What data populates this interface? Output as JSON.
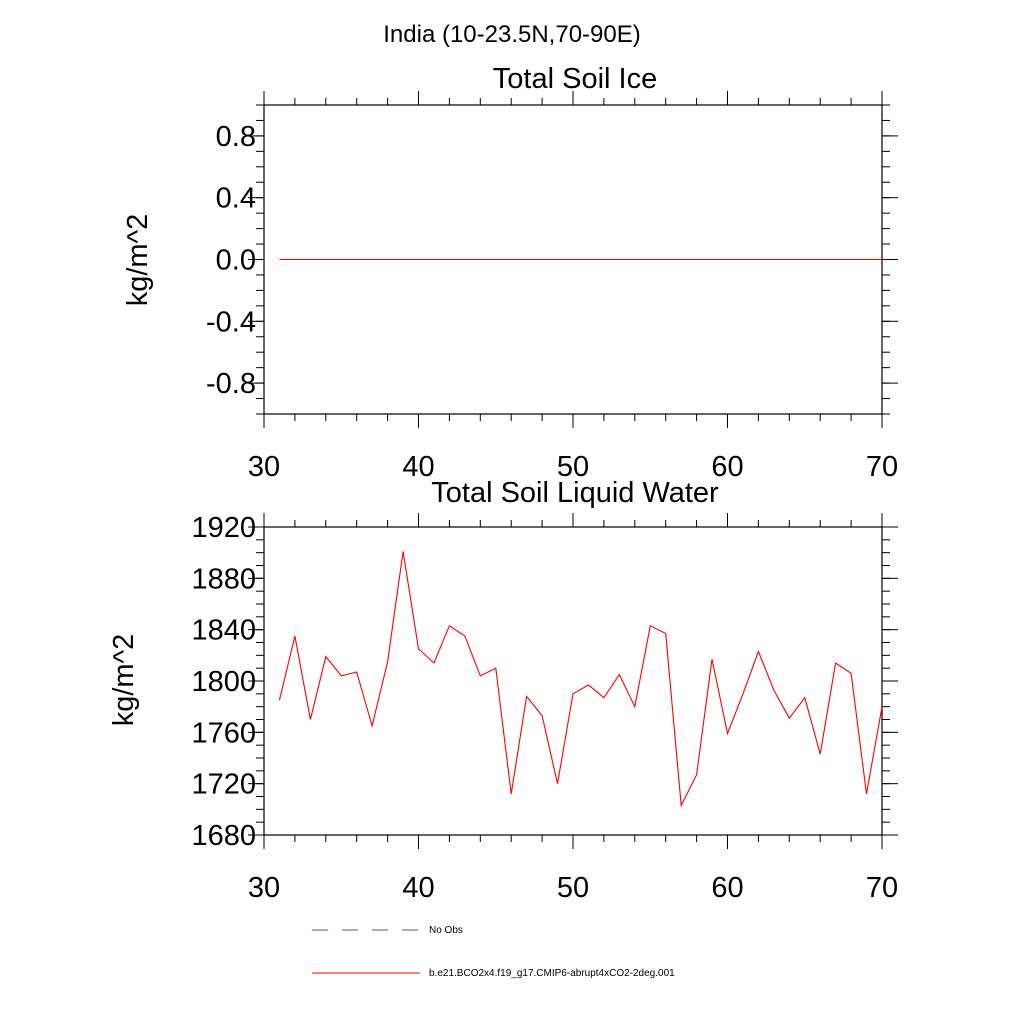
{
  "suptitle": "India (10-23.5N,70-90E)",
  "chart_data": [
    {
      "type": "line",
      "title": "Total Soil Ice",
      "xlabel": "",
      "ylabel": "kg/m^2",
      "xlim": [
        30,
        70
      ],
      "ylim": [
        -1,
        1
      ],
      "x_ticks": [
        30,
        40,
        50,
        60,
        70
      ],
      "y_ticks": [
        -0.8,
        -0.4,
        0.0,
        0.4,
        0.8
      ],
      "x_tick_labels": [
        "30",
        "40",
        "50",
        "60",
        "70"
      ],
      "y_tick_labels": [
        "-0.8",
        "-0.4",
        "0.0",
        "0.4",
        "0.8"
      ],
      "grid": false,
      "series": [
        {
          "name": "b.e21.BCO2x4.f19_g17.CMIP6-abrupt4xCO2-2deg.001",
          "color": "#ff0000",
          "x": [
            31,
            32,
            33,
            34,
            35,
            36,
            37,
            38,
            39,
            40,
            41,
            42,
            43,
            44,
            45,
            46,
            47,
            48,
            49,
            50,
            51,
            52,
            53,
            54,
            55,
            56,
            57,
            58,
            59,
            60,
            61,
            62,
            63,
            64,
            65,
            66,
            67,
            68,
            69,
            70
          ],
          "values": [
            0,
            0,
            0,
            0,
            0,
            0,
            0,
            0,
            0,
            0,
            0,
            0,
            0,
            0,
            0,
            0,
            0,
            0,
            0,
            0,
            0,
            0,
            0,
            0,
            0,
            0,
            0,
            0,
            0,
            0,
            0,
            0,
            0,
            0,
            0,
            0,
            0,
            0,
            0,
            0
          ]
        }
      ]
    },
    {
      "type": "line",
      "title": "Total Soil Liquid Water",
      "xlabel": "",
      "ylabel": "kg/m^2",
      "xlim": [
        30,
        70
      ],
      "ylim": [
        1680,
        1920
      ],
      "x_ticks": [
        30,
        40,
        50,
        60,
        70
      ],
      "y_ticks": [
        1680,
        1720,
        1760,
        1800,
        1840,
        1880,
        1920
      ],
      "x_tick_labels": [
        "30",
        "40",
        "50",
        "60",
        "70"
      ],
      "y_tick_labels": [
        "1680",
        "1720",
        "1760",
        "1800",
        "1840",
        "1880",
        "1920"
      ],
      "grid": false,
      "series": [
        {
          "name": "b.e21.BCO2x4.f19_g17.CMIP6-abrupt4xCO2-2deg.001",
          "color": "#ff0000",
          "x": [
            31,
            32,
            33,
            34,
            35,
            36,
            37,
            38,
            39,
            40,
            41,
            42,
            43,
            44,
            45,
            46,
            47,
            48,
            49,
            50,
            51,
            52,
            53,
            54,
            55,
            56,
            57,
            58,
            59,
            60,
            61,
            62,
            63,
            64,
            65,
            66,
            67,
            68,
            69,
            70
          ],
          "values": [
            1785,
            1835,
            1770,
            1819,
            1804,
            1807,
            1765,
            1815,
            1901,
            1825,
            1814,
            1843,
            1835,
            1804,
            1810,
            1712,
            1788,
            1773,
            1720,
            1790,
            1797,
            1787,
            1805,
            1780,
            1843,
            1837,
            1703,
            1727,
            1817,
            1759,
            1790,
            1823,
            1793,
            1771,
            1787,
            1743,
            1814,
            1806,
            1712,
            1780
          ]
        }
      ]
    }
  ],
  "legend": {
    "placement": "bottom",
    "items": [
      {
        "label": "No Obs",
        "style": "dashed",
        "color": "#5a5a8c"
      },
      {
        "label": "b.e21.BCO2x4.f19_g17.CMIP6-abrupt4xCO2-2deg.001",
        "style": "solid",
        "color": "#ff0000"
      }
    ]
  }
}
